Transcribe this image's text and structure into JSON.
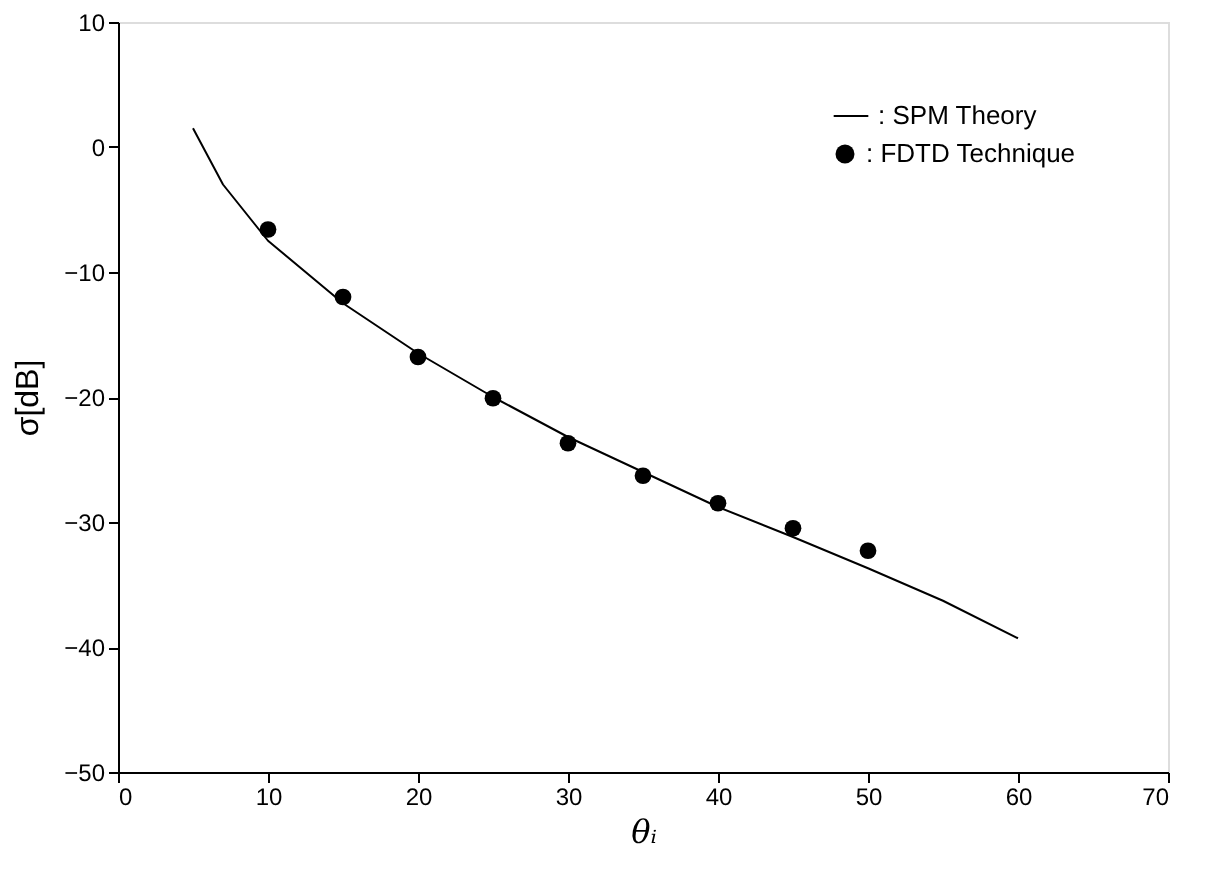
{
  "chart_data": {
    "type": "line",
    "xlabel": "θᵢ",
    "ylabel": "σ[dB]",
    "xlim": [
      0,
      70
    ],
    "xticks": [
      0,
      10,
      20,
      30,
      40,
      50,
      60,
      70
    ],
    "ylim": [
      -50,
      10
    ],
    "yticks": [
      -50,
      -40,
      -30,
      -20,
      -10,
      0,
      10
    ],
    "grid": false,
    "legend": "top right",
    "series": [
      {
        "name": ": SPM Theory",
        "type": "line",
        "color": "#000000",
        "marker": "none",
        "line_style": "solid",
        "x": [
          5,
          7,
          10,
          15,
          20,
          25,
          30,
          35,
          40,
          45,
          50,
          55,
          60
        ],
        "values": [
          1.5,
          -3,
          -7.5,
          -12.5,
          -16.5,
          -20,
          -23.2,
          -26,
          -28.8,
          -31.2,
          -33.7,
          -36.3,
          -39.3
        ]
      },
      {
        "name": ": FDTD Technique",
        "type": "scatter",
        "color": "#000000",
        "marker": "circle",
        "x": [
          10,
          15,
          20,
          25,
          30,
          35,
          40,
          45,
          50
        ],
        "values": [
          -6.6,
          -12,
          -16.8,
          -20.1,
          -23.7,
          -26.3,
          -28.5,
          -30.5,
          -32.3
        ]
      }
    ]
  }
}
